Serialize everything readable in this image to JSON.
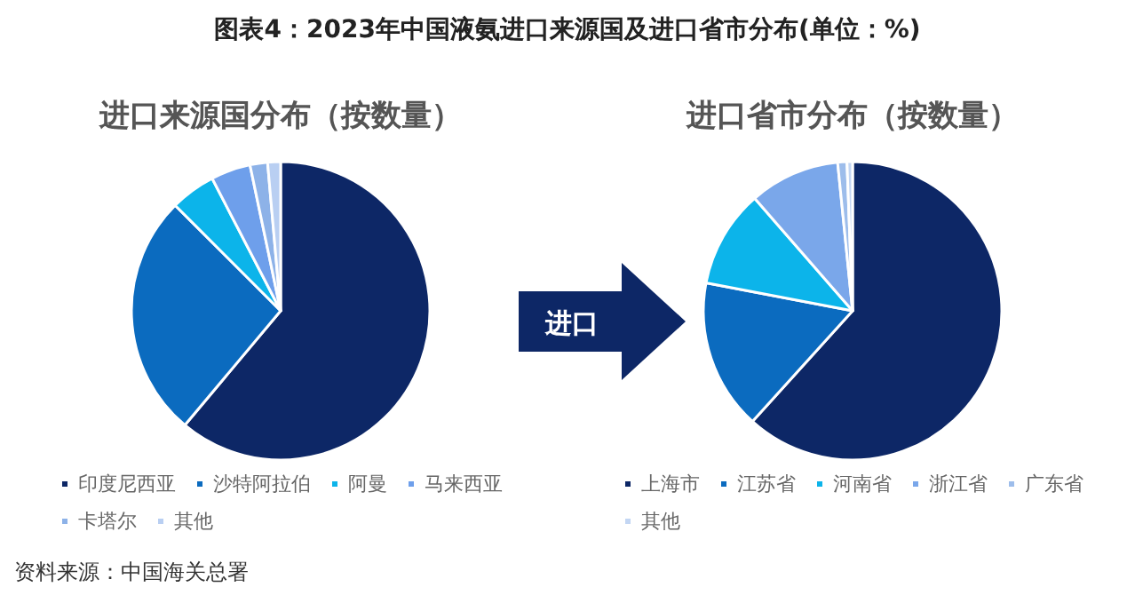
{
  "chart_data": [
    {
      "type": "pie",
      "title": "图表4：2023年中国液氨进口来源国及进口省市分布(单位：%)",
      "subtitle": "进口来源国分布（按数量）",
      "categories": [
        "印度尼西亚",
        "沙特阿拉伯",
        "阿曼",
        "马来西亚",
        "卡塔尔",
        "其他"
      ],
      "values": [
        61.1,
        26.4,
        4.9,
        4.3,
        1.9,
        1.4
      ],
      "colors": [
        "#0d2766",
        "#0b6bbf",
        "#0cb4ea",
        "#6e9feb",
        "#8db2e8",
        "#b9cff2"
      ],
      "legend": "bottom",
      "annotations": [
        "进口",
        "资料来源：中国海关总署"
      ]
    },
    {
      "type": "pie",
      "subtitle": "进口省市分布（按数量）",
      "categories": [
        "上海市",
        "江苏省",
        "河南省",
        "浙江省",
        "广东省",
        "其他"
      ],
      "values": [
        61.7,
        16.3,
        10.6,
        9.8,
        1.0,
        0.6
      ],
      "colors": [
        "#0d2766",
        "#0b6bbf",
        "#0cb4ea",
        "#7aa7ea",
        "#9dbdeb",
        "#c3d6f3"
      ],
      "legend": "bottom"
    }
  ]
}
